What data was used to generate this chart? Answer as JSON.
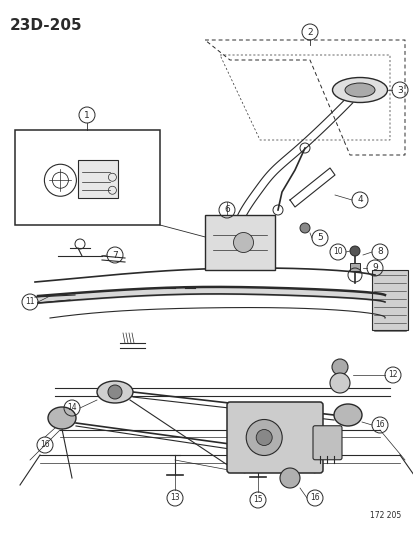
{
  "title": "23D-205",
  "watermark": "172 205",
  "bg_color": "#ffffff",
  "line_color": "#2a2a2a",
  "title_fontsize": 11,
  "label_fontsize": 7,
  "figsize": [
    4.14,
    5.33
  ],
  "dpi": 100
}
